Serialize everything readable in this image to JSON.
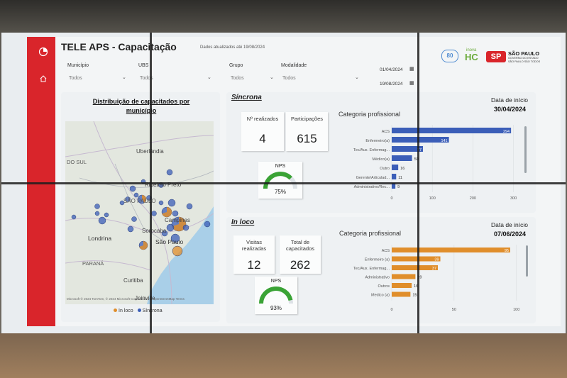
{
  "dashboard": {
    "title": "TELE APS - Capacitação",
    "updated": "Dados atualizados até 19/08/2024"
  },
  "filters": {
    "municipio": {
      "label": "Município",
      "value": "Todos"
    },
    "ubs": {
      "label": "UBS",
      "value": "Todos"
    },
    "grupo": {
      "label": "Grupo",
      "value": "Todos"
    },
    "modalidade": {
      "label": "Modalidade",
      "value": "Todos"
    },
    "date_start": "01/04/2024",
    "date_end": "19/08/2024"
  },
  "logos": {
    "inova": "inova",
    "hc": "HC",
    "anniversary": "80",
    "sp_title": "SÃO PAULO",
    "sp_sub1": "GOVERNO DO ESTADO",
    "sp_sub2": "SÃO PAULO SÃO TODOS"
  },
  "map": {
    "title": "Distribuição de capacitados por município",
    "labels": [
      "Uberlândia",
      "DO SUL",
      "Ribeirão Preto",
      "SÃO PAULO",
      "Campinas",
      "Londrina",
      "Sorocaba",
      "São Paulo",
      "PARANÁ",
      "Curitiba",
      "Joinville"
    ],
    "credit": "Microsoft © 2024 TomTom, © 2024 Microsoft Corporation, © OpenStreetMap Terms",
    "legend_inloco": "In loco",
    "legend_sincrona": "Síncrona",
    "colors": {
      "inloco": "#e08e2b",
      "sincrona": "#3b5eb8"
    }
  },
  "sincrona": {
    "title": "Síncrona",
    "date_label": "Data de início",
    "date_value": "30/04/2024",
    "realizados_label": "Nº realizados",
    "realizados_value": "4",
    "participacoes_label": "Participações",
    "participacoes_value": "615",
    "nps_label": "NPS",
    "nps_value": "75%",
    "nps_fraction": 0.75,
    "cat_title": "Categoria profissional"
  },
  "inloco": {
    "title": "In loco",
    "date_label": "Data de início",
    "date_value": "07/06/2024",
    "visitas_label": "Visitas realizadas",
    "visitas_value": "12",
    "total_label": "Total de capacitados",
    "total_value": "262",
    "nps_label": "NPS",
    "nps_value": "93%",
    "nps_fraction": 0.93,
    "cat_title": "Categoria profissional"
  },
  "chart_data": [
    {
      "type": "bar",
      "orientation": "horizontal",
      "title": "Categoria profissional",
      "categories": [
        "ACS",
        "Enfermeiro(a)",
        "Tec/Aux. Enfermag...",
        "Médico(a)",
        "Outro",
        "Gerente/Articulad...",
        "Administrativo/Rec..."
      ],
      "values": [
        294,
        141,
        77,
        50,
        16,
        11,
        9
      ],
      "xticks": [
        0,
        100,
        200,
        300
      ],
      "xlim": [
        0,
        320
      ],
      "color": "#3b5eb8"
    },
    {
      "type": "bar",
      "orientation": "horizontal",
      "title": "Categoria profissional",
      "categories": [
        "ACS",
        "Enfermeiro (a)",
        "Tec/Aux. Enfermag...",
        "Administrativo",
        "Outros",
        "Medico (a)"
      ],
      "values": [
        95,
        39,
        37,
        19,
        16,
        15
      ],
      "xticks": [
        0,
        50,
        100
      ],
      "xlim": [
        0,
        103
      ],
      "color": "#e08e2b"
    }
  ]
}
